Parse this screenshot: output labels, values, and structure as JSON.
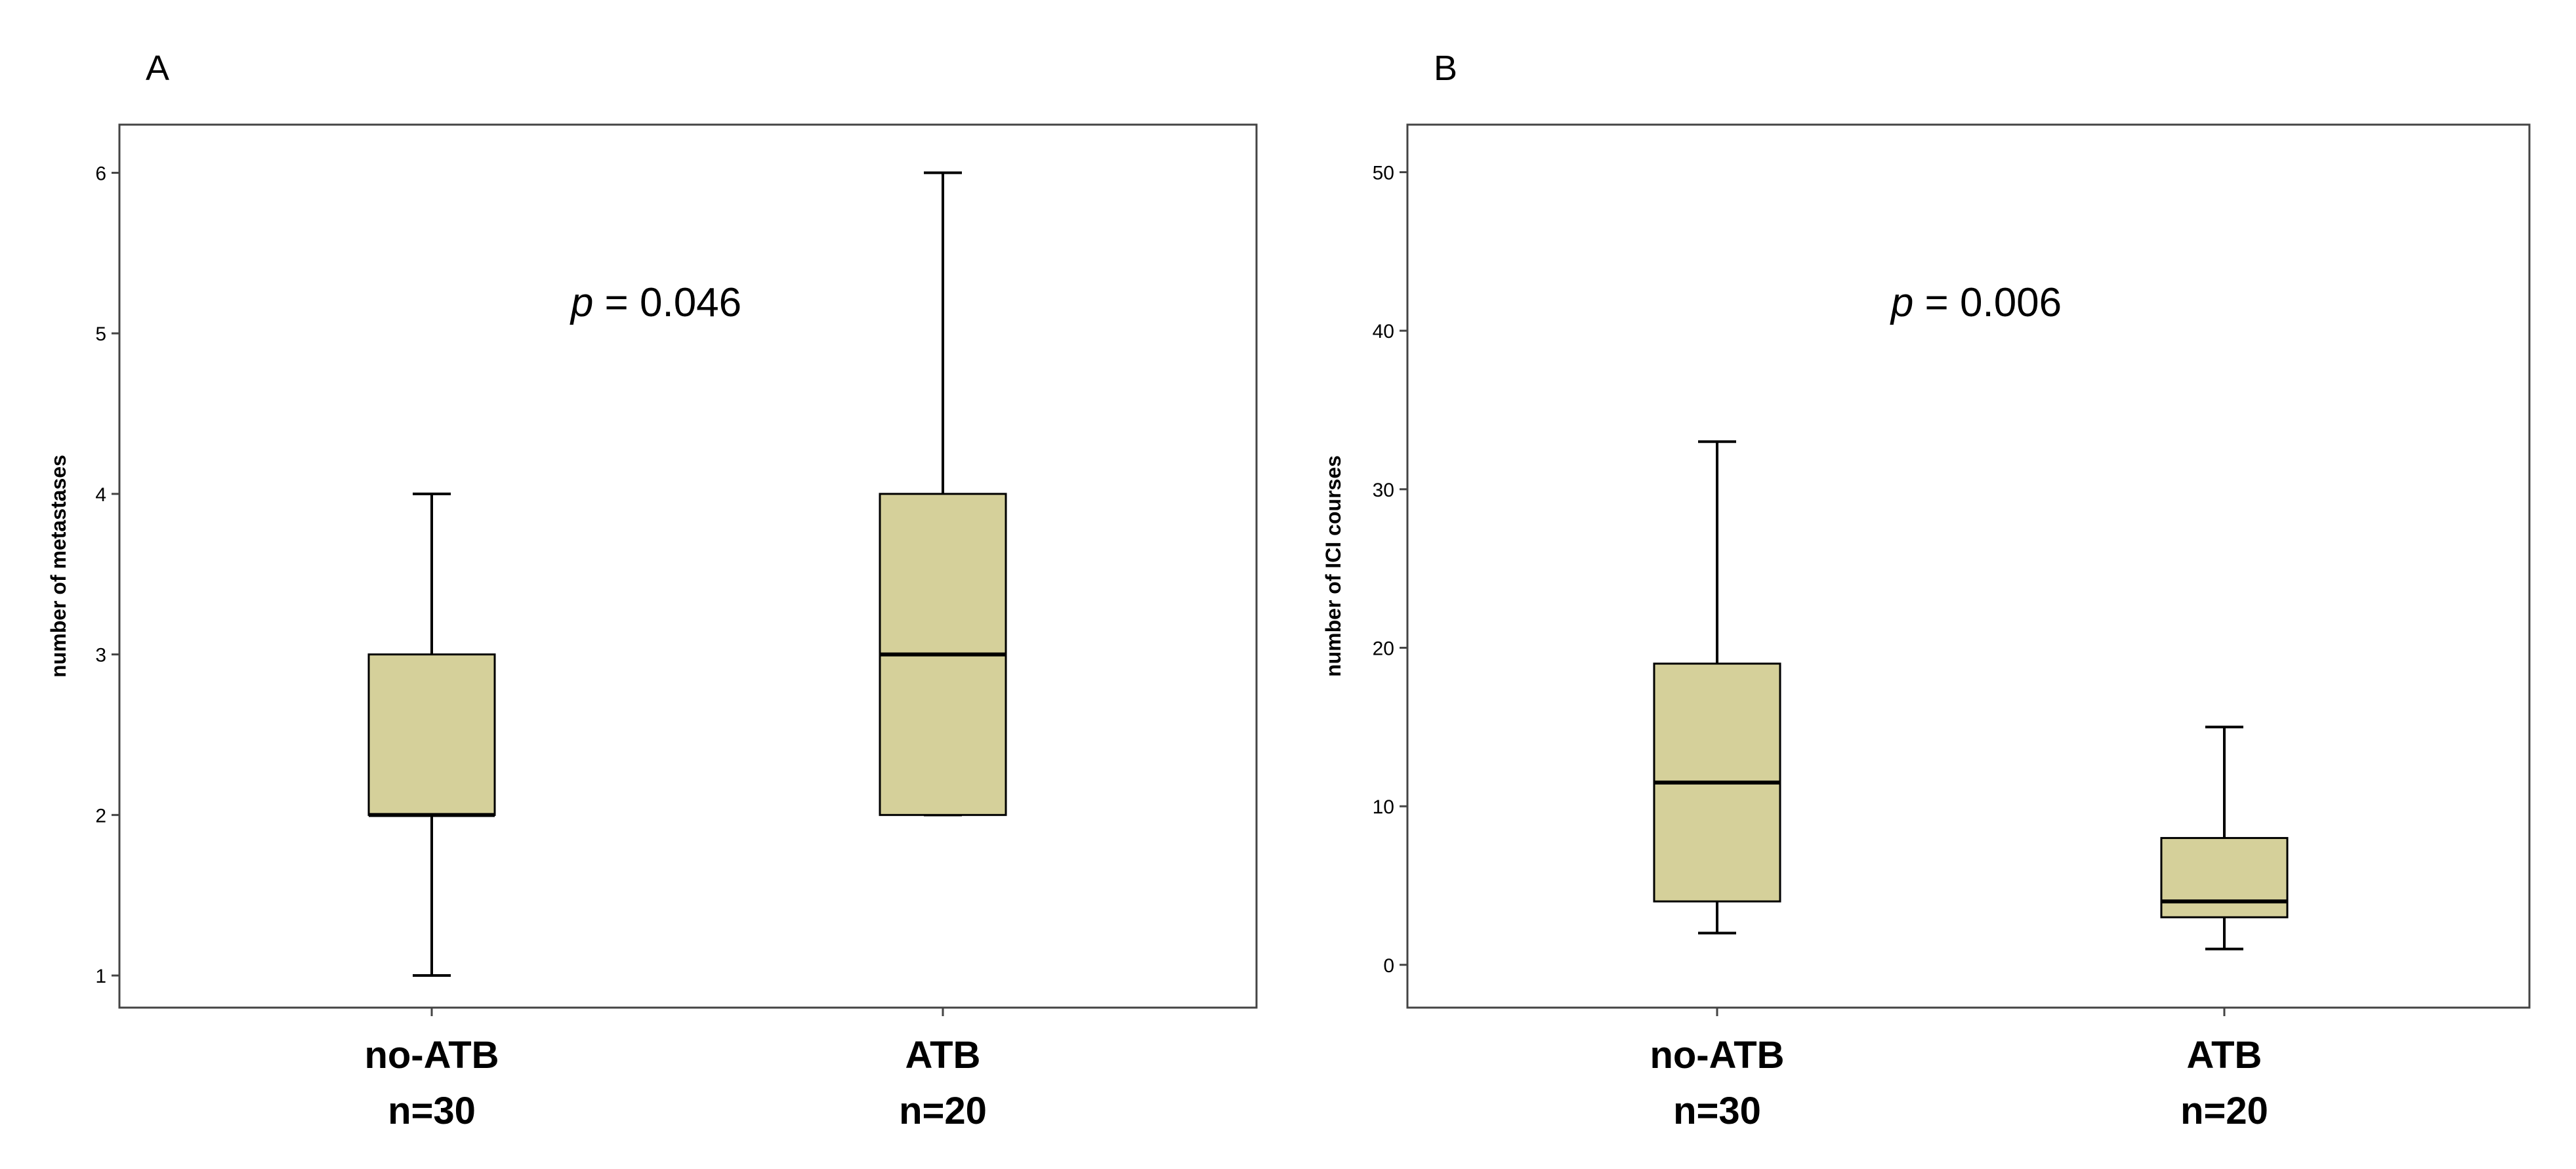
{
  "chart_data": [
    {
      "type": "boxplot",
      "panel_label": "A",
      "title": "",
      "xlabel": "",
      "ylabel": "number of metastases",
      "ylim": [
        0.8,
        6.3
      ],
      "yticks": [
        "1",
        "2",
        "3",
        "4",
        "5",
        "6"
      ],
      "annotation": {
        "prefix": "p",
        "text": " = 0.046"
      },
      "fill_color": "#d5d09a",
      "categories": [
        {
          "label": "no-ATB",
          "n_label": "n=30",
          "whisker_low": 1,
          "q1": 2,
          "median": 2,
          "q3": 3,
          "whisker_high": 4
        },
        {
          "label": "ATB",
          "n_label": "n=20",
          "whisker_low": 2,
          "q1": 2,
          "median": 3,
          "q3": 4,
          "whisker_high": 6
        }
      ]
    },
    {
      "type": "boxplot",
      "panel_label": "B",
      "title": "",
      "xlabel": "",
      "ylabel": "number of ICI courses",
      "ylim": [
        -2.7,
        53
      ],
      "yticks": [
        "0",
        "10",
        "20",
        "30",
        "40",
        "50"
      ],
      "annotation": {
        "prefix": "p",
        "text": " = 0.006"
      },
      "fill_color": "#d5d09a",
      "categories": [
        {
          "label": "no-ATB",
          "n_label": "n=30",
          "whisker_low": 2,
          "q1": 4,
          "median": 11.5,
          "q3": 19,
          "whisker_high": 33
        },
        {
          "label": "ATB",
          "n_label": "n=20",
          "whisker_low": 1,
          "q1": 3,
          "median": 4,
          "q3": 8,
          "whisker_high": 15
        }
      ]
    }
  ]
}
